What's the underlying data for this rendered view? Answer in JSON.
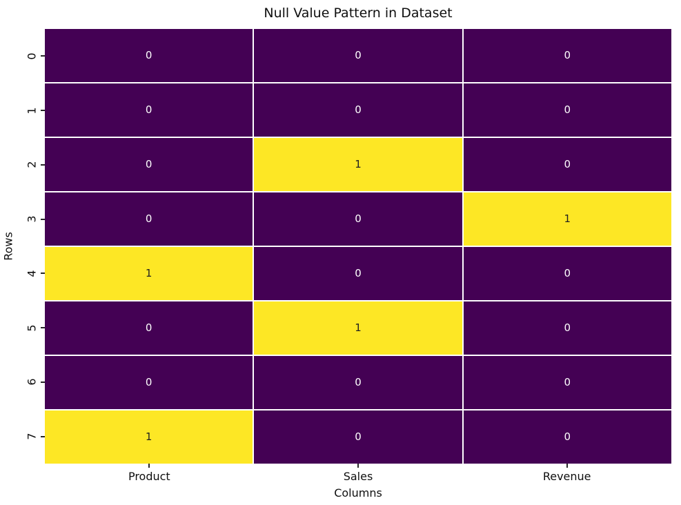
{
  "chart_data": {
    "type": "heatmap",
    "title": "Null Value Pattern in Dataset",
    "xlabel": "Columns",
    "ylabel": "Rows",
    "columns": [
      "Product",
      "Sales",
      "Revenue"
    ],
    "rows": [
      "0",
      "1",
      "2",
      "3",
      "4",
      "5",
      "6",
      "7"
    ],
    "matrix": [
      [
        0,
        0,
        0
      ],
      [
        0,
        0,
        0
      ],
      [
        0,
        1,
        0
      ],
      [
        0,
        0,
        1
      ],
      [
        1,
        0,
        0
      ],
      [
        0,
        1,
        0
      ],
      [
        0,
        0,
        0
      ],
      [
        1,
        0,
        0
      ]
    ],
    "annotated": true,
    "colormap": "viridis",
    "color_for_0": "#440154",
    "color_for_1": "#fde725",
    "annot_color_on_dark": "#ffffff",
    "annot_color_on_light": "#1f1f1f",
    "grid_line_color": "#ffffff",
    "legend": "none",
    "colorbar": false
  }
}
